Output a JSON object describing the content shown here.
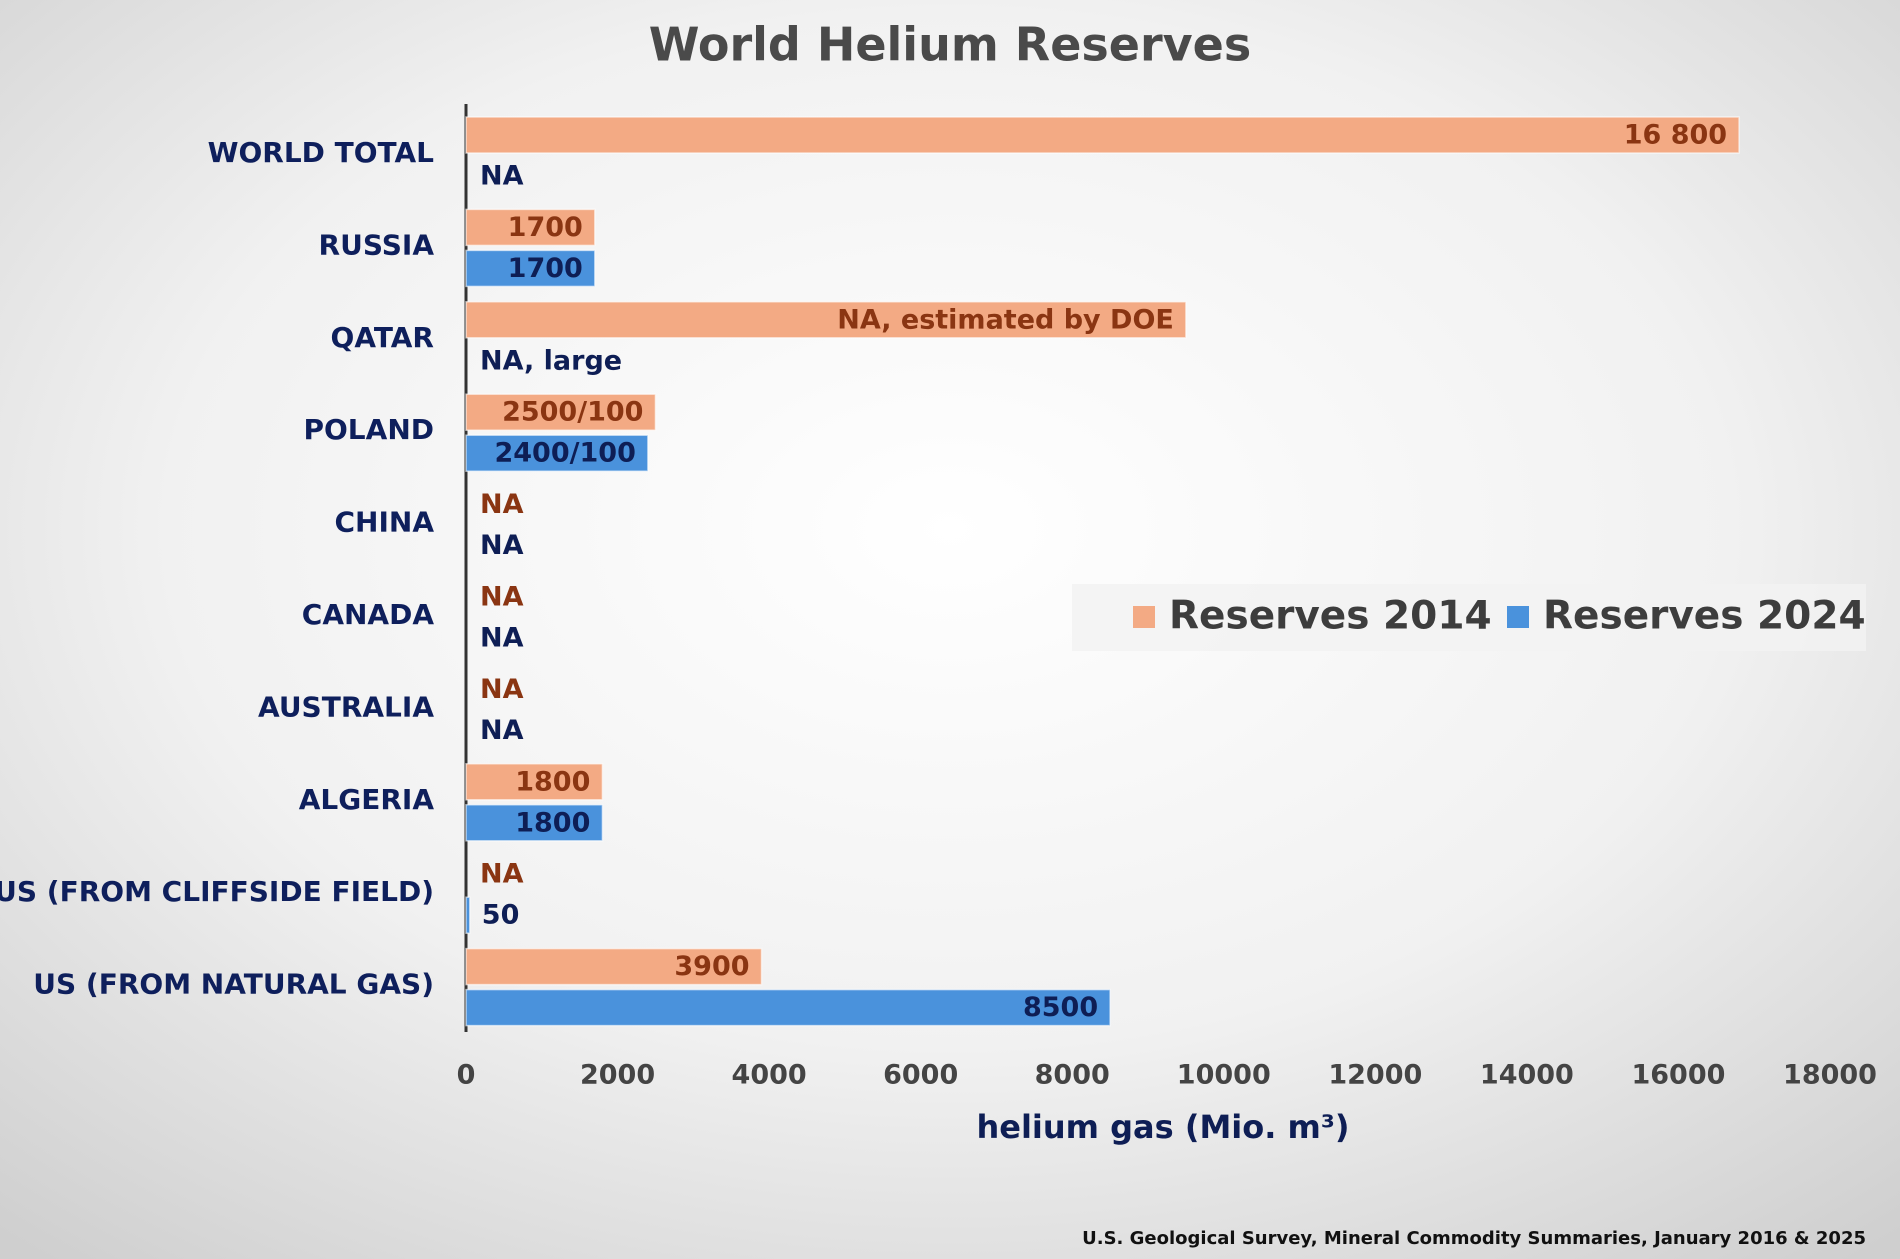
{
  "chart_data": {
    "type": "bar",
    "orientation": "horizontal",
    "title": "World Helium Reserves",
    "x_label": "helium gas (Mio. m³)",
    "source": "U.S. Geological Survey, Mineral Commodity Summaries, January 2016 & 2025",
    "categories": [
      "WORLD TOTAL",
      "RUSSIA",
      "QATAR",
      "POLAND",
      "CHINA",
      "CANADA",
      "AUSTRALIA",
      "ALGERIA",
      "US (FROM CLIFFSIDE FIELD)",
      "US (FROM NATURAL GAS)"
    ],
    "series": [
      {
        "name": "Reserves 2014",
        "color": "#f3aa84",
        "label_color": "#8a3512",
        "values": [
          16800,
          1700,
          9500,
          2500,
          null,
          null,
          null,
          1800,
          null,
          3900
        ],
        "value_labels": [
          "16 800",
          "1700",
          "NA, estimated by DOE",
          "2500/100",
          "NA",
          "NA",
          "NA",
          "1800",
          "NA",
          "3900"
        ]
      },
      {
        "name": "Reserves 2024",
        "color": "#4a92dc",
        "label_color": "#0e1e55",
        "values": [
          null,
          1700,
          null,
          2400,
          null,
          null,
          null,
          1800,
          50,
          8500
        ],
        "value_labels": [
          "NA",
          "1700",
          "NA, large",
          "2400/100",
          "NA",
          "NA",
          "NA",
          "1800",
          "50",
          "8500"
        ]
      }
    ],
    "xlim": [
      0,
      18000
    ],
    "xticks": [
      0,
      2000,
      4000,
      6000,
      8000,
      10000,
      12000,
      14000,
      16000,
      18000
    ],
    "grid": true,
    "legend": "right"
  }
}
